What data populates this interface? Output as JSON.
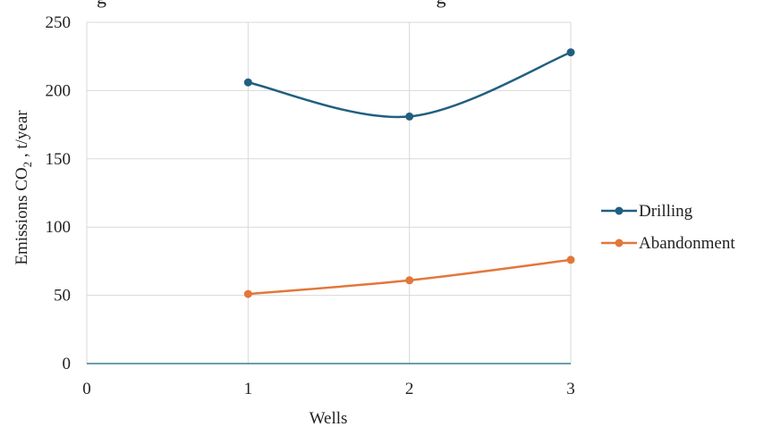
{
  "header_fragment": "g                                                                   g",
  "chart_data": {
    "type": "line",
    "xlabel": "Wells",
    "ylabel": {
      "prefix": "Emissions  CO",
      "subscript": "2",
      "suffix": " , t/year"
    },
    "xlim": [
      0,
      3
    ],
    "ylim": [
      0,
      250
    ],
    "x_ticks": [
      "0",
      "1",
      "2",
      "3"
    ],
    "y_ticks": [
      "0",
      "50",
      "100",
      "150",
      "200",
      "250"
    ],
    "grid": true,
    "smooth": true,
    "legend_position": "right",
    "series": [
      {
        "name": "Drilling",
        "color": "#215f80",
        "x": [
          1,
          2,
          3
        ],
        "y": [
          206,
          181,
          228
        ]
      },
      {
        "name": "Abandonment",
        "color": "#e2773a",
        "x": [
          1,
          2,
          3
        ],
        "y": [
          51,
          61,
          76
        ]
      }
    ]
  },
  "colors": {
    "grid": "#d9d9d9",
    "baseline": "#3c7f93",
    "text": "#222222"
  }
}
